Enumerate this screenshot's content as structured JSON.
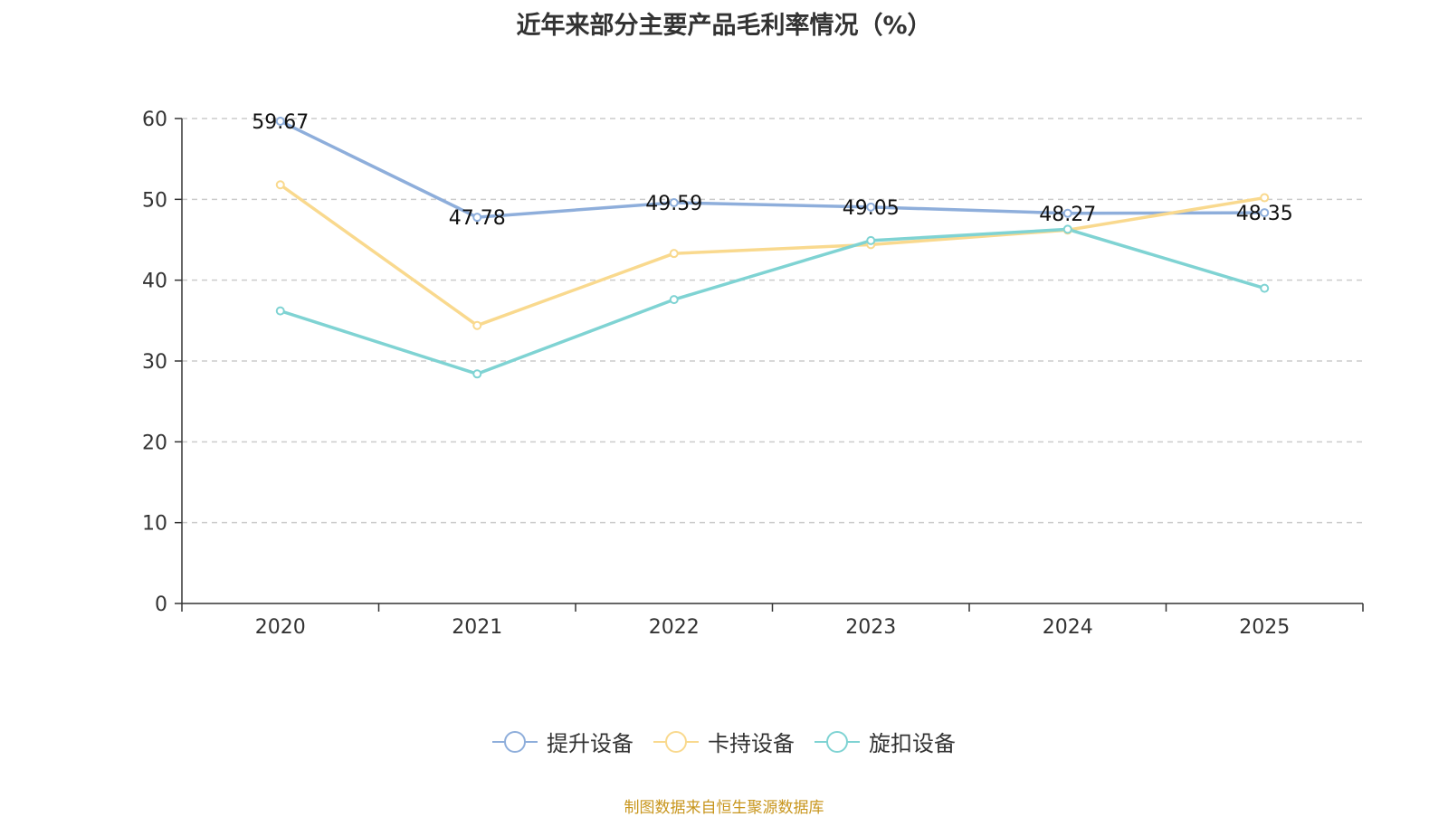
{
  "chart_data": {
    "type": "line",
    "title": "近年来部分主要产品毛利率情况（%）",
    "categories": [
      "2020",
      "2021",
      "2022",
      "2023",
      "2024",
      "2025"
    ],
    "ylim": [
      0,
      60
    ],
    "yticks": [
      0,
      10,
      20,
      30,
      40,
      50,
      60
    ],
    "grid": true,
    "legend_position": "bottom",
    "series": [
      {
        "name": "提升设备",
        "color": "#8eaedb",
        "values": [
          59.67,
          47.78,
          49.59,
          49.05,
          48.27,
          48.35
        ],
        "show_labels": true,
        "labels": [
          "59.67",
          "47.78",
          "49.59",
          "49.05",
          "48.27",
          "48.35"
        ]
      },
      {
        "name": "卡持设备",
        "color": "#f9d98e",
        "values": [
          51.8,
          34.4,
          43.3,
          44.4,
          46.2,
          50.2
        ],
        "show_labels": false
      },
      {
        "name": "旋扣设备",
        "color": "#7fd3d3",
        "values": [
          36.2,
          28.4,
          37.6,
          44.9,
          46.3,
          39.0
        ],
        "show_labels": false
      }
    ]
  },
  "source": "制图数据来自恒生聚源数据库"
}
